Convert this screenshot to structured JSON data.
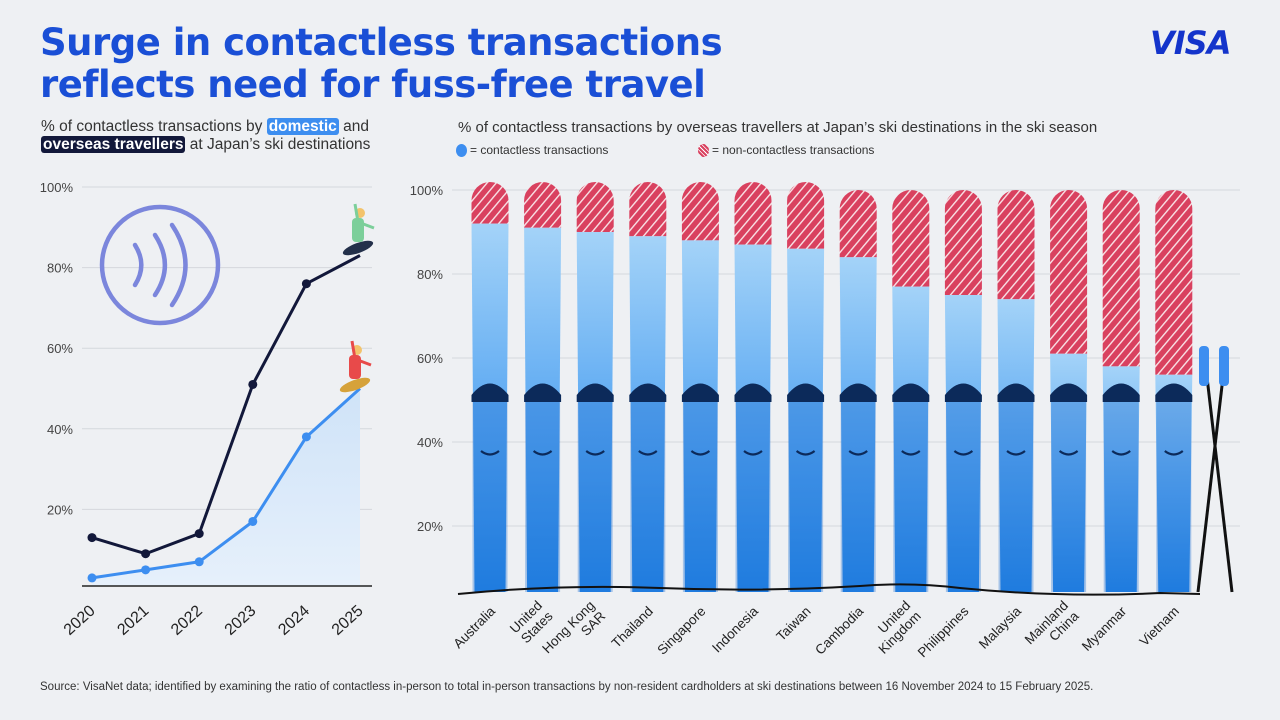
{
  "title_line1": "Surge in contactless transactions",
  "title_line2": "reflects need for fuss-free travel",
  "logo": "VISA",
  "colors": {
    "brand": "#1434cb",
    "domestic": "#3d8ef0",
    "overseas": "#12183a",
    "contactless": "#3d8ef0",
    "non_contactless": "#d9415f"
  },
  "source": "Source: VisaNet data; identified by examining the ratio of contactless in-person to total in-person transactions by non-resident cardholders at ski destinations between 16 November 2024 to 15 February 2025.",
  "chart_data": [
    {
      "type": "line",
      "title_parts": [
        "% of contactless transactions by ",
        "domestic",
        " and ",
        "overseas travellers",
        " at Japan’s ski destinations"
      ],
      "categories": [
        "2020",
        "2021",
        "2022",
        "2023",
        "2024",
        "2025"
      ],
      "series": [
        {
          "name": "domestic",
          "values": [
            3,
            5,
            7,
            17,
            38,
            50
          ]
        },
        {
          "name": "overseas travellers",
          "values": [
            13,
            9,
            14,
            51,
            76,
            83
          ]
        }
      ],
      "yticks": [
        "20%",
        "40%",
        "60%",
        "80%",
        "100%"
      ],
      "ylim": [
        0,
        100
      ],
      "grid": true,
      "icons": [
        "contactless-icon",
        "snowboarder-icon"
      ]
    },
    {
      "type": "bar",
      "stacked": true,
      "title": "% of contactless transactions by overseas travellers at Japan’s ski destinations in the ski season",
      "legend": [
        "= contactless transactions",
        "= non-contactless transactions"
      ],
      "legend_placement": "top-left",
      "categories": [
        "Australia",
        "United States",
        "Hong Kong SAR",
        "Thailand",
        "Singapore",
        "Indonesia",
        "Taiwan",
        "Cambodia",
        "United Kingdom",
        "Philippines",
        "Malaysia",
        "Mainland China",
        "Myanmar",
        "Vietnam"
      ],
      "category_lines": [
        [
          "Australia"
        ],
        [
          "United",
          "States"
        ],
        [
          "Hong Kong",
          "SAR"
        ],
        [
          "Thailand"
        ],
        [
          "Singapore"
        ],
        [
          "Indonesia"
        ],
        [
          "Taiwan"
        ],
        [
          "Cambodia"
        ],
        [
          "United",
          "Kingdom"
        ],
        [
          "Philippines"
        ],
        [
          "Malaysia"
        ],
        [
          "Mainland",
          "China"
        ],
        [
          "Myanmar"
        ],
        [
          "Vietnam"
        ]
      ],
      "series": [
        {
          "name": "contactless transactions",
          "values": [
            92,
            91,
            90,
            89,
            88,
            87,
            86,
            84,
            77,
            75,
            74,
            61,
            58,
            56
          ]
        },
        {
          "name": "non-contactless transactions",
          "values": [
            8,
            9,
            10,
            11,
            12,
            13,
            14,
            16,
            23,
            25,
            26,
            39,
            42,
            44
          ]
        }
      ],
      "yticks": [
        "20%",
        "40%",
        "60%",
        "80%",
        "100%"
      ],
      "ylim": [
        0,
        100
      ],
      "grid": true
    }
  ]
}
